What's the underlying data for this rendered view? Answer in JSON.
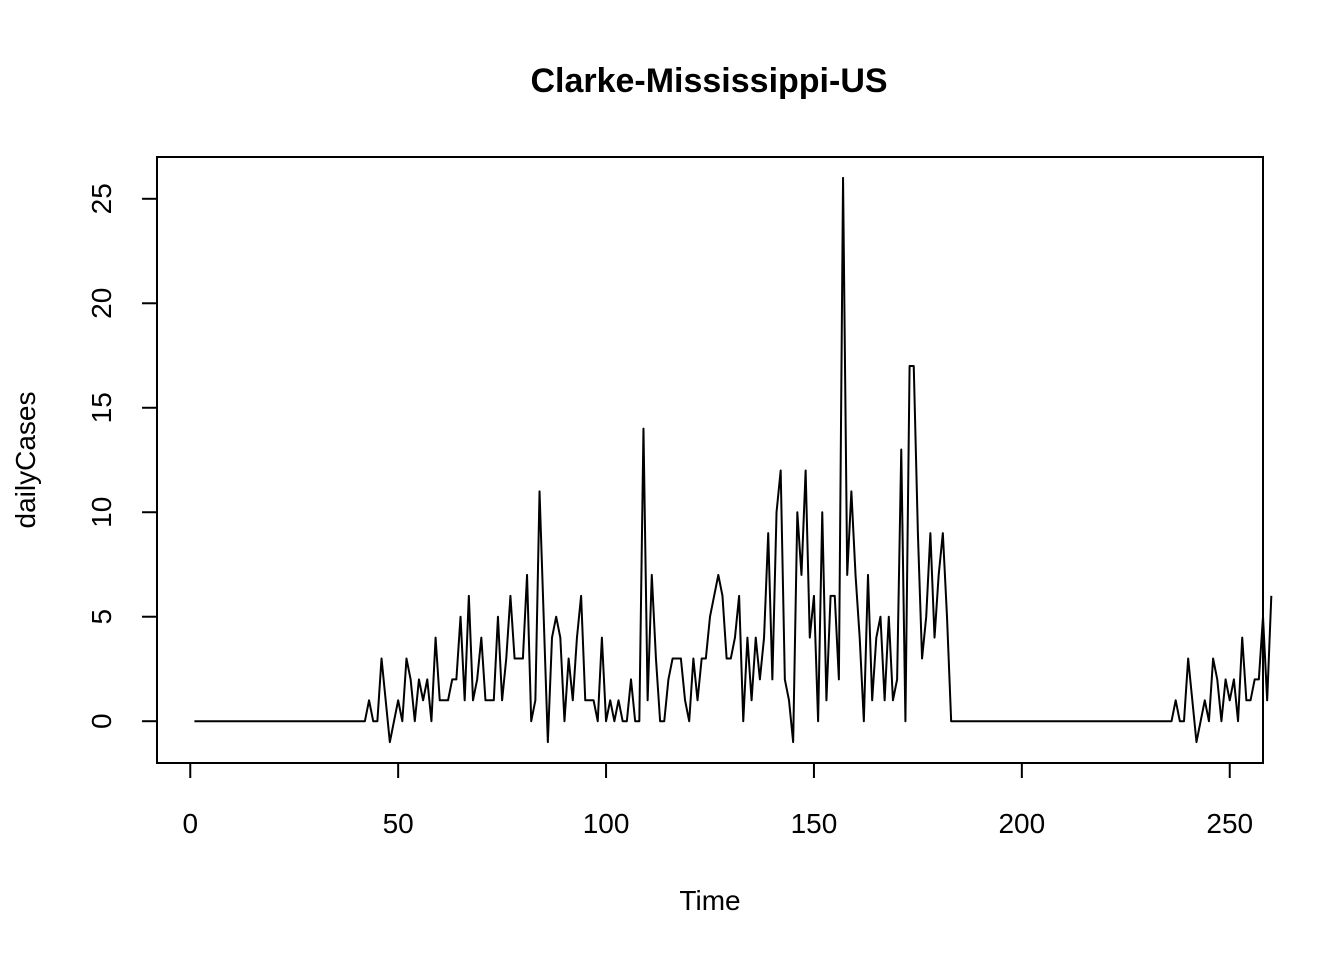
{
  "chart_data": {
    "type": "line",
    "title": "Clarke-Mississippi-US",
    "xlabel": "Time",
    "ylabel": "dailyCases",
    "xlim": [
      -8,
      258
    ],
    "ylim": [
      -2,
      27
    ],
    "x_ticks": [
      0,
      50,
      100,
      150,
      200,
      250
    ],
    "y_ticks": [
      0,
      5,
      10,
      15,
      20,
      25
    ],
    "grid": false,
    "legend": "none",
    "line_color": "#000000",
    "series": [
      {
        "x_start": 1,
        "values": [
          0,
          0,
          0,
          0,
          0,
          0,
          0,
          0,
          0,
          0,
          0,
          0,
          0,
          0,
          0,
          0,
          0,
          0,
          0,
          0,
          0,
          0,
          0,
          0,
          0,
          0,
          0,
          0,
          0,
          0,
          0,
          0,
          0,
          0,
          0,
          0,
          0,
          0,
          0,
          0,
          0,
          0,
          1,
          0,
          0,
          3,
          1,
          -1,
          0,
          1,
          0,
          3,
          2,
          0,
          2,
          1,
          2,
          0,
          4,
          1,
          1,
          1,
          2,
          2,
          5,
          1,
          6,
          1,
          2,
          4,
          1,
          1,
          1,
          5,
          1,
          3,
          6,
          3,
          3,
          3,
          7,
          0,
          1,
          11,
          5,
          -1,
          4,
          5,
          4,
          0,
          3,
          1,
          4,
          6,
          1,
          1,
          1,
          0,
          4,
          0,
          1,
          0,
          1,
          0,
          0,
          2,
          0,
          0,
          14,
          1,
          7,
          3,
          0,
          0,
          2,
          3,
          3,
          3,
          1,
          0,
          3,
          1,
          3,
          3,
          5,
          6,
          7,
          6,
          3,
          3,
          4,
          6,
          0,
          4,
          1,
          4,
          2,
          4,
          9,
          2,
          10,
          12,
          2,
          1,
          -1,
          10,
          7,
          12,
          4,
          6,
          0,
          10,
          1,
          6,
          6,
          2,
          26,
          7,
          11,
          7,
          4,
          0,
          7,
          1,
          4,
          5,
          1,
          5,
          1,
          2,
          13,
          0,
          17,
          17,
          9,
          3,
          5,
          9,
          4,
          7,
          9,
          5,
          0,
          0,
          0,
          0,
          0,
          0,
          0,
          0,
          0,
          0,
          0,
          0,
          0,
          0,
          0,
          0,
          0,
          0,
          0,
          0,
          0,
          0,
          0,
          0,
          0,
          0,
          0,
          0,
          0,
          0,
          0,
          0,
          0,
          0,
          0,
          0,
          0,
          0,
          0,
          0,
          0,
          0,
          0,
          0,
          0,
          0,
          0,
          0,
          0,
          0,
          0,
          0,
          0,
          0,
          1,
          0,
          0,
          3,
          1,
          -1,
          0,
          1,
          0,
          3,
          2,
          0,
          2,
          1,
          2,
          0,
          4,
          1,
          1,
          2,
          2,
          5,
          1,
          6
        ]
      }
    ]
  }
}
